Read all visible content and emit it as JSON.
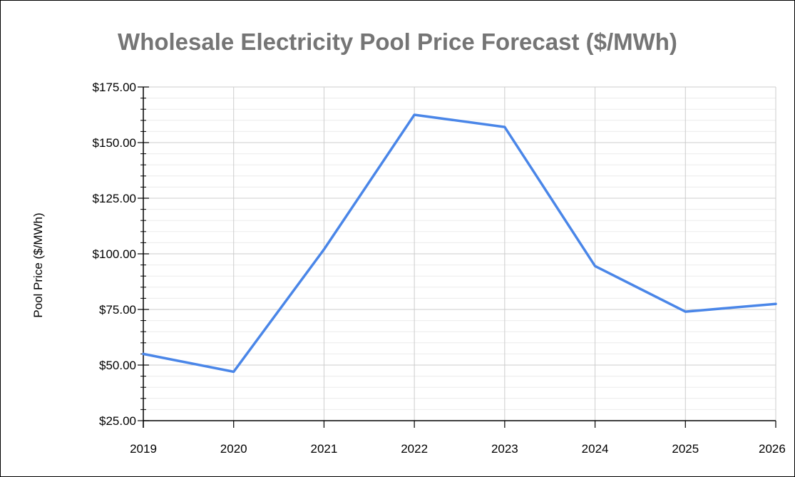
{
  "chart_data": {
    "type": "line",
    "title": "Wholesale Electricity Pool Price Forecast ($/MWh)",
    "xlabel": "",
    "ylabel": "Pool Price ($/MWh)",
    "x": [
      "2019",
      "2020",
      "2021",
      "2022",
      "2023",
      "2024",
      "2025",
      "2026"
    ],
    "series": [
      {
        "values": [
          55.0,
          47.0,
          102.0,
          162.5,
          157.0,
          94.5,
          74.0,
          77.5
        ],
        "color": "#4a86e8"
      }
    ],
    "yticks": [
      "$25.00",
      "$50.00",
      "$75.00",
      "$100.00",
      "$125.00",
      "$150.00",
      "$175.00"
    ],
    "ylim": [
      25,
      175
    ],
    "grid": true,
    "legend": "none"
  }
}
